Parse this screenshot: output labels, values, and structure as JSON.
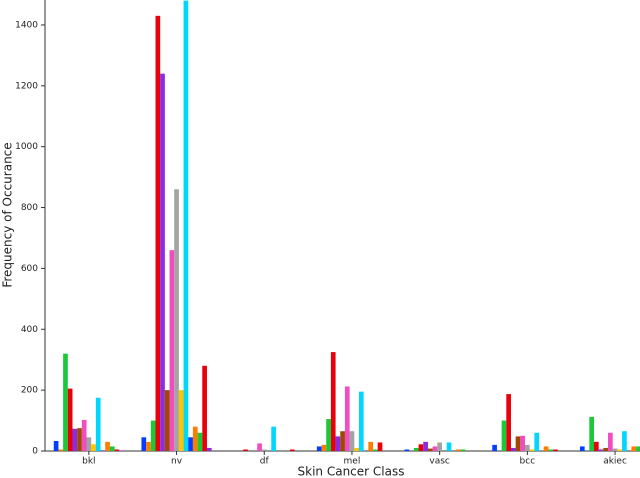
{
  "chart_data": {
    "type": "bar",
    "xlabel": "Skin Cancer Class",
    "ylabel": "Frequency of Occurance",
    "categories": [
      "bkl",
      "nv",
      "df",
      "mel",
      "vasc",
      "bcc",
      "akiec"
    ],
    "ylim": [
      0,
      1482
    ],
    "yticks": [
      0,
      200,
      400,
      600,
      800,
      1000,
      1200,
      1400
    ],
    "grid": false,
    "series": [
      {
        "color": "#023eff",
        "values": [
          33,
          45,
          0,
          15,
          5,
          20,
          15
        ]
      },
      {
        "color": "#ff7c00",
        "values": [
          5,
          30,
          0,
          20,
          0,
          0,
          0
        ]
      },
      {
        "color": "#1ac938",
        "values": [
          320,
          100,
          0,
          105,
          10,
          100,
          112
        ]
      },
      {
        "color": "#e8000b",
        "values": [
          205,
          1430,
          5,
          325,
          22,
          187,
          30
        ]
      },
      {
        "color": "#8b2be2",
        "values": [
          73,
          1240,
          0,
          48,
          30,
          10,
          5
        ]
      },
      {
        "color": "#9f4800",
        "values": [
          75,
          200,
          0,
          65,
          8,
          48,
          10
        ]
      },
      {
        "color": "#f14cc1",
        "values": [
          102,
          660,
          25,
          212,
          15,
          50,
          60
        ]
      },
      {
        "color": "#a3a3a3",
        "values": [
          45,
          860,
          5,
          65,
          28,
          20,
          8
        ]
      },
      {
        "color": "#ffc400",
        "values": [
          22,
          200,
          0,
          10,
          0,
          5,
          5
        ]
      },
      {
        "color": "#00d7ff",
        "values": [
          175,
          1480,
          80,
          195,
          28,
          60,
          65
        ]
      },
      {
        "color": "#023eff",
        "values": [
          2,
          45,
          0,
          0,
          0,
          0,
          0
        ]
      },
      {
        "color": "#ff7c00",
        "values": [
          30,
          80,
          0,
          30,
          5,
          15,
          15
        ]
      },
      {
        "color": "#1ac938",
        "values": [
          15,
          60,
          0,
          5,
          5,
          5,
          15
        ]
      },
      {
        "color": "#e8000b",
        "values": [
          5,
          280,
          5,
          28,
          0,
          5,
          0
        ]
      },
      {
        "color": "#8b2be2",
        "values": [
          2,
          10,
          0,
          0,
          0,
          0,
          0
        ]
      }
    ]
  }
}
